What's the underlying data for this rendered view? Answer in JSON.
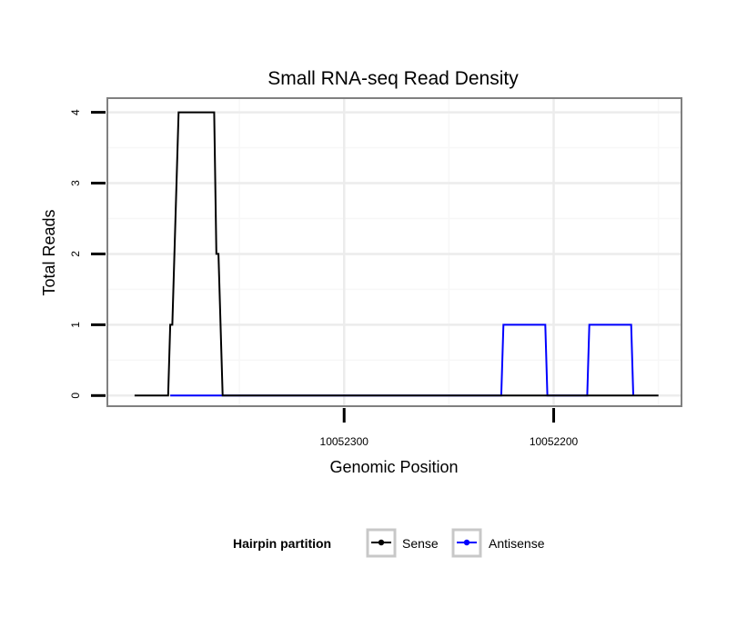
{
  "chart_data": {
    "type": "line",
    "title": "Small RNA-seq Read Density",
    "xlabel": "Genomic Position",
    "ylabel": "Total Reads",
    "xlim": [
      10052413,
      10052139
    ],
    "ylim": [
      -0.15,
      4.2
    ],
    "x_reversed": true,
    "x_ticks": [
      10052300,
      10052200
    ],
    "x_tick_labels": [
      "10052300",
      "10052200"
    ],
    "y_ticks": [
      0,
      1,
      2,
      3,
      4
    ],
    "y_tick_labels": [
      "0",
      "1",
      "2",
      "3",
      "4"
    ],
    "grid": true,
    "legend": {
      "title": "Hairpin partition",
      "position": "bottom"
    },
    "series": [
      {
        "name": "Sense",
        "color": "#000000",
        "points": [
          [
            10052400,
            0
          ],
          [
            10052384,
            0
          ],
          [
            10052383,
            1
          ],
          [
            10052382,
            1
          ],
          [
            10052381,
            2
          ],
          [
            10052379,
            4
          ],
          [
            10052362,
            4
          ],
          [
            10052361,
            2
          ],
          [
            10052360,
            2
          ],
          [
            10052358,
            0
          ],
          [
            10052150,
            0
          ]
        ]
      },
      {
        "name": "Antisense",
        "color": "#0000ff",
        "points": [
          [
            10052383,
            0
          ],
          [
            10052358,
            0
          ],
          [
            10052225,
            0
          ],
          [
            10052224,
            1
          ],
          [
            10052204,
            1
          ],
          [
            10052203,
            0
          ],
          [
            10052184,
            0
          ],
          [
            10052183,
            1
          ],
          [
            10052163,
            1
          ],
          [
            10052162,
            0
          ]
        ]
      }
    ]
  }
}
